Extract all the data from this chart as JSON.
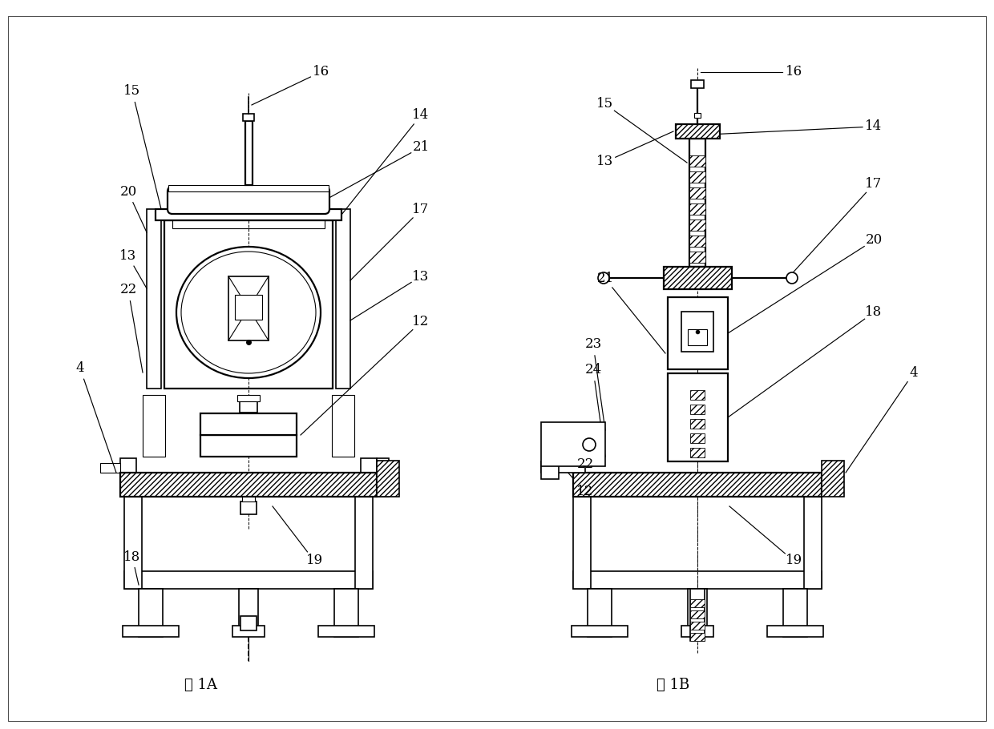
{
  "fig_width": 12.4,
  "fig_height": 9.1,
  "dpi": 100,
  "bg_color": "#ffffff",
  "line_color": "#000000",
  "label_fontsize": 12,
  "caption_fontsize": 13,
  "fig1A_caption": "图 1A",
  "fig1B_caption": "图 1B"
}
